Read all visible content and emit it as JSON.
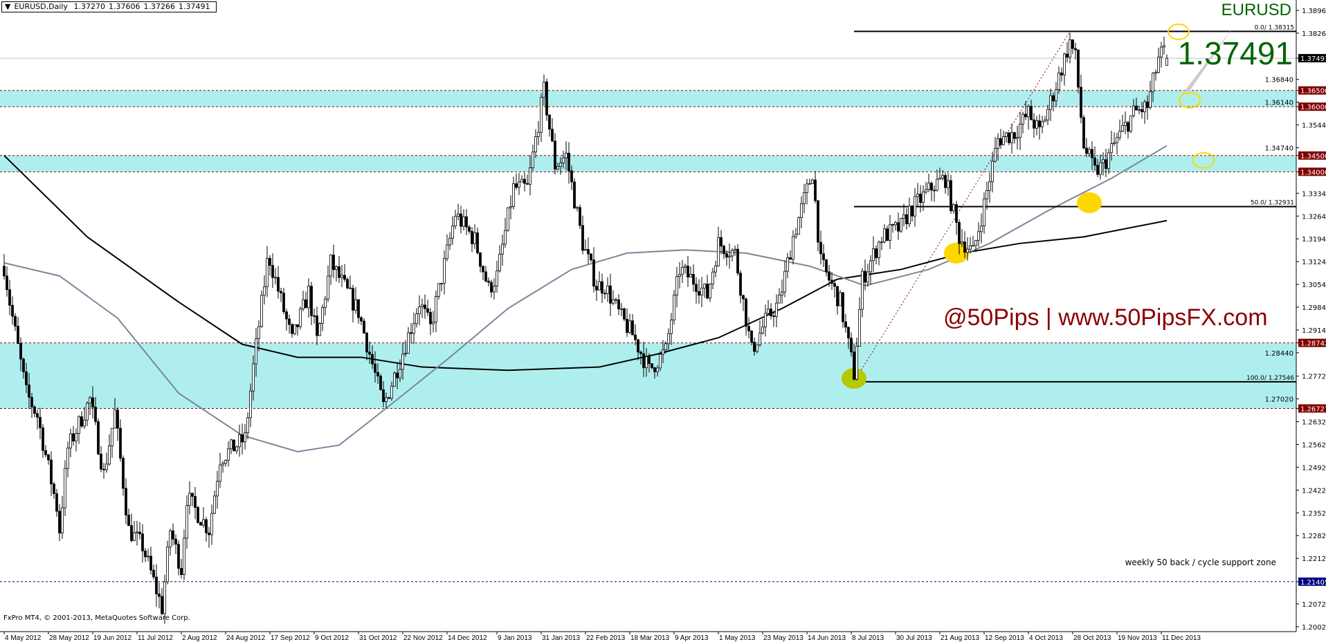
{
  "header": {
    "symbol_timeframe": "EURUSD,Daily",
    "open": "1.37270",
    "high": "1.37606",
    "low": "1.37266",
    "close": "1.37491",
    "menu_icon": "triangle-down-icon"
  },
  "footer": "FxPro MT4, © 2001-2013, MetaQuotes Software Corp.",
  "overlay": {
    "symbol": "EURUSD",
    "price": "1.37491",
    "brand": "@50Pips | www.50PipsFX.com",
    "note": "weekly 50 back / cycle support zone"
  },
  "colors": {
    "zone": "#afeeee",
    "level_line": "#800000",
    "support_line": "#000080",
    "ma_fast": "#778899",
    "ma_slow": "#000000",
    "text_green": "#006400",
    "brand": "#8b0000",
    "highlight": "#ffd700",
    "highlight_low": "#b5c800"
  },
  "chart_data": {
    "type": "candlestick",
    "symbol": "EURUSD",
    "timeframe": "Daily",
    "ylim": [
      1.2002,
      1.3896
    ],
    "grid": false,
    "y_ticks": [
      "1.38960",
      "1.38260",
      "1.37491",
      "1.36840",
      "1.36500",
      "1.36140",
      "1.36000",
      "1.35440",
      "1.34740",
      "1.34500",
      "1.34000",
      "1.33340",
      "1.32640",
      "1.31940",
      "1.31240",
      "1.30540",
      "1.29840",
      "1.29140",
      "1.28742",
      "1.28440",
      "1.27720",
      "1.27020",
      "1.26727",
      "1.26320",
      "1.25620",
      "1.24920",
      "1.24220",
      "1.23520",
      "1.22820",
      "1.22120",
      "1.21405",
      "1.20720",
      "1.20020"
    ],
    "x_ticks": [
      "4 May 2012",
      "28 May 2012",
      "19 Jun 2012",
      "11 Jul 2012",
      "2 Aug 2012",
      "24 Aug 2012",
      "17 Sep 2012",
      "9 Oct 2012",
      "31 Oct 2012",
      "22 Nov 2012",
      "14 Dec 2012",
      "9 Jan 2013",
      "31 Jan 2013",
      "22 Feb 2013",
      "18 Mar 2013",
      "9 Apr 2013",
      "1 May 2013",
      "23 May 2013",
      "14 Jun 2013",
      "8 Jul 2013",
      "30 Jul 2013",
      "21 Aug 2013",
      "12 Sep 2013",
      "4 Oct 2013",
      "28 Oct 2013",
      "19 Nov 2013",
      "11 Dec 2013"
    ],
    "x_tick_dates": [
      "2012-05-04",
      "2012-05-28",
      "2012-06-19",
      "2012-07-11",
      "2012-08-02",
      "2012-08-24",
      "2012-09-17",
      "2012-10-09",
      "2012-10-31",
      "2012-11-22",
      "2012-12-14",
      "2013-01-09",
      "2013-01-31",
      "2013-02-22",
      "2013-03-18",
      "2013-04-09",
      "2013-05-01",
      "2013-05-23",
      "2013-06-14",
      "2013-07-08",
      "2013-07-30",
      "2013-08-21",
      "2013-09-12",
      "2013-10-04",
      "2013-10-28",
      "2013-11-19",
      "2013-12-11"
    ],
    "price_path": [
      [
        "2012-05-04",
        1.311
      ],
      [
        "2012-05-08",
        1.3
      ],
      [
        "2012-05-16",
        1.272
      ],
      [
        "2012-05-22",
        1.265
      ],
      [
        "2012-05-31",
        1.237
      ],
      [
        "2012-06-01",
        1.23
      ],
      [
        "2012-06-06",
        1.255
      ],
      [
        "2012-06-18",
        1.27
      ],
      [
        "2012-06-25",
        1.247
      ],
      [
        "2012-06-29",
        1.266
      ],
      [
        "2012-07-06",
        1.23
      ],
      [
        "2012-07-13",
        1.225
      ],
      [
        "2012-07-24",
        1.206
      ],
      [
        "2012-07-27",
        1.23
      ],
      [
        "2012-08-02",
        1.218
      ],
      [
        "2012-08-06",
        1.24
      ],
      [
        "2012-08-16",
        1.23
      ],
      [
        "2012-08-22",
        1.252
      ],
      [
        "2012-09-04",
        1.258
      ],
      [
        "2012-09-07",
        1.28
      ],
      [
        "2012-09-14",
        1.312
      ],
      [
        "2012-09-17",
        1.313
      ],
      [
        "2012-09-27",
        1.288
      ],
      [
        "2012-10-05",
        1.303
      ],
      [
        "2012-10-10",
        1.288
      ],
      [
        "2012-10-17",
        1.312
      ],
      [
        "2012-10-31",
        1.297
      ],
      [
        "2012-11-13",
        1.268
      ],
      [
        "2012-11-21",
        1.282
      ],
      [
        "2012-11-30",
        1.3
      ],
      [
        "2012-12-06",
        1.292
      ],
      [
        "2012-12-19",
        1.327
      ],
      [
        "2012-12-28",
        1.319
      ],
      [
        "2013-01-04",
        1.304
      ],
      [
        "2013-01-09",
        1.308
      ],
      [
        "2013-01-17",
        1.335
      ],
      [
        "2013-01-24",
        1.335
      ],
      [
        "2013-02-01",
        1.365
      ],
      [
        "2013-02-07",
        1.342
      ],
      [
        "2013-02-13",
        1.345
      ],
      [
        "2013-02-21",
        1.318
      ],
      [
        "2013-02-28",
        1.305
      ],
      [
        "2013-03-05",
        1.305
      ],
      [
        "2013-03-08",
        1.3
      ],
      [
        "2013-03-13",
        1.295
      ],
      [
        "2013-03-19",
        1.29
      ],
      [
        "2013-03-27",
        1.279
      ],
      [
        "2013-04-04",
        1.285
      ],
      [
        "2013-04-11",
        1.31
      ],
      [
        "2013-04-19",
        1.306
      ],
      [
        "2013-04-25",
        1.302
      ],
      [
        "2013-05-01",
        1.318
      ],
      [
        "2013-05-09",
        1.315
      ],
      [
        "2013-05-17",
        1.285
      ],
      [
        "2013-05-24",
        1.294
      ],
      [
        "2013-05-31",
        1.3
      ],
      [
        "2013-06-07",
        1.32
      ],
      [
        "2013-06-18",
        1.34
      ],
      [
        "2013-06-21",
        1.312
      ],
      [
        "2013-07-02",
        1.3
      ],
      [
        "2013-07-09",
        1.278
      ],
      [
        "2013-07-12",
        1.307
      ],
      [
        "2013-07-23",
        1.32
      ],
      [
        "2013-08-01",
        1.323
      ],
      [
        "2013-08-06",
        1.328
      ],
      [
        "2013-08-19",
        1.336
      ],
      [
        "2013-08-23",
        1.338
      ],
      [
        "2013-08-30",
        1.32
      ],
      [
        "2013-09-06",
        1.315
      ],
      [
        "2013-09-12",
        1.33
      ],
      [
        "2013-09-19",
        1.35
      ],
      [
        "2013-09-27",
        1.352
      ],
      [
        "2013-10-04",
        1.358
      ],
      [
        "2013-10-10",
        1.352
      ],
      [
        "2013-10-17",
        1.364
      ],
      [
        "2013-10-25",
        1.38
      ],
      [
        "2013-10-29",
        1.375
      ],
      [
        "2013-11-01",
        1.348
      ],
      [
        "2013-11-07",
        1.34
      ],
      [
        "2013-11-12",
        1.342
      ],
      [
        "2013-11-19",
        1.35
      ],
      [
        "2013-11-27",
        1.358
      ],
      [
        "2013-12-04",
        1.36
      ],
      [
        "2013-12-10",
        1.375
      ],
      [
        "2013-12-12",
        1.377
      ],
      [
        "2013-12-13",
        1.3749
      ]
    ],
    "last_candle": {
      "open": 1.3727,
      "high": 1.37606,
      "low": 1.37266,
      "close": 1.37491
    },
    "moving_averages": [
      {
        "color": "#000000",
        "points": [
          [
            "2012-05-04",
            1.345
          ],
          [
            "2012-06-15",
            1.32
          ],
          [
            "2012-08-01",
            1.3
          ],
          [
            "2012-09-01",
            1.287
          ],
          [
            "2012-10-01",
            1.283
          ],
          [
            "2012-11-01",
            1.283
          ],
          [
            "2012-12-01",
            1.28
          ],
          [
            "2013-01-15",
            1.279
          ],
          [
            "2013-03-01",
            1.28
          ],
          [
            "2013-04-01",
            1.284
          ],
          [
            "2013-05-01",
            1.289
          ],
          [
            "2013-06-01",
            1.298
          ],
          [
            "2013-07-01",
            1.307
          ],
          [
            "2013-08-01",
            1.31
          ],
          [
            "2013-09-01",
            1.315
          ],
          [
            "2013-10-01",
            1.318
          ],
          [
            "2013-11-01",
            1.32
          ],
          [
            "2013-12-13",
            1.325
          ]
        ]
      },
      {
        "color": "#778899",
        "points": [
          [
            "2012-05-04",
            1.312
          ],
          [
            "2012-06-01",
            1.308
          ],
          [
            "2012-07-01",
            1.295
          ],
          [
            "2012-08-01",
            1.272
          ],
          [
            "2012-09-01",
            1.259
          ],
          [
            "2012-10-01",
            1.254
          ],
          [
            "2012-10-20",
            1.256
          ],
          [
            "2012-11-15",
            1.268
          ],
          [
            "2012-12-15",
            1.283
          ],
          [
            "2013-01-15",
            1.298
          ],
          [
            "2013-02-15",
            1.31
          ],
          [
            "2013-03-15",
            1.315
          ],
          [
            "2013-04-15",
            1.316
          ],
          [
            "2013-05-15",
            1.315
          ],
          [
            "2013-06-15",
            1.311
          ],
          [
            "2013-07-15",
            1.305
          ],
          [
            "2013-08-15",
            1.31
          ],
          [
            "2013-09-15",
            1.318
          ],
          [
            "2013-10-15",
            1.328
          ],
          [
            "2013-11-15",
            1.338
          ],
          [
            "2013-12-13",
            1.348
          ]
        ]
      }
    ],
    "zones": [
      [
        1.36,
        1.365
      ],
      [
        1.34,
        1.345
      ],
      [
        1.26727,
        1.28742
      ]
    ],
    "level_badges": [
      {
        "price": 1.365,
        "label": "1.36500",
        "color": "#800000"
      },
      {
        "price": 1.36,
        "label": "1.36000",
        "color": "#800000"
      },
      {
        "price": 1.345,
        "label": "1.34500",
        "color": "#800000"
      },
      {
        "price": 1.34,
        "label": "1.34000",
        "color": "#800000"
      },
      {
        "price": 1.28742,
        "label": "1.28742",
        "color": "#800000"
      },
      {
        "price": 1.26727,
        "label": "1.26727",
        "color": "#800000"
      },
      {
        "price": 1.21405,
        "label": "1.21405",
        "color": "#000080"
      }
    ],
    "current_price": {
      "price": 1.37491,
      "label": "1.37491"
    },
    "fibonacci": {
      "from": [
        "2013-07-09",
        1.27546
      ],
      "to": [
        "2013-10-25",
        1.38315
      ],
      "levels": [
        {
          "price": 1.38315,
          "label": "0.0/ 1.38315"
        },
        {
          "price": 1.32931,
          "label": "50.0/ 1.32931"
        },
        {
          "price": 1.27546,
          "label": "100.0/ 1.27546"
        }
      ]
    },
    "highlights": [
      {
        "date": "2013-07-09",
        "price": 1.2765,
        "color": "#b5c800"
      },
      {
        "date": "2013-08-29",
        "price": 1.315,
        "color": "#ffd700"
      },
      {
        "date": "2013-11-05",
        "price": 1.3305,
        "color": "#ffd700"
      }
    ],
    "target_circles": [
      1.383,
      1.362,
      1.3435
    ]
  }
}
